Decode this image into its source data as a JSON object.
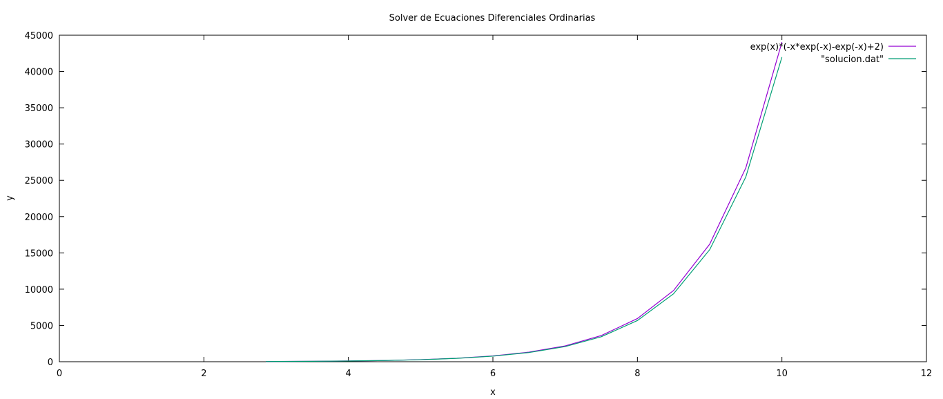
{
  "chart_data": {
    "type": "line",
    "title": "Solver de Ecuaciones Diferenciales Ordinarias",
    "xlabel": "x",
    "ylabel": "y",
    "xlim": [
      0,
      12
    ],
    "ylim": [
      0,
      45000
    ],
    "xticks": [
      0,
      2,
      4,
      6,
      8,
      10,
      12
    ],
    "yticks": [
      0,
      5000,
      10000,
      15000,
      20000,
      25000,
      30000,
      35000,
      40000,
      45000
    ],
    "grid": false,
    "legend_position": "top-right",
    "series": [
      {
        "name": "exp(x)*(-x*exp(-x)-exp(-x)+2)",
        "color": "#9400d3",
        "x": [
          2.857,
          3.0,
          3.5,
          4.0,
          4.5,
          5.0,
          5.5,
          6.0,
          6.5,
          7.0,
          7.5,
          8.0,
          8.5,
          9.0,
          9.5,
          10.0
        ],
        "y": [
          31.5,
          36.2,
          62.7,
          104.2,
          169.5,
          290.8,
          480.9,
          799.9,
          1325.7,
          2185.3,
          3607.6,
          5951.0,
          9817.0,
          16196.0,
          26706.0,
          44041.0
        ]
      },
      {
        "name": "\"solucion.dat\"",
        "color": "#009e73",
        "x": [
          2.857,
          3.0,
          3.5,
          4.0,
          4.5,
          5.0,
          5.5,
          6.0,
          6.5,
          7.0,
          7.5,
          8.0,
          8.5,
          9.0,
          9.5,
          10.0
        ],
        "y": [
          31.5,
          36.0,
          61.5,
          101.5,
          164.0,
          279.0,
          460.0,
          765.0,
          1266.0,
          2085.0,
          3440.0,
          5675.0,
          9360.0,
          15440.0,
          25455.0,
          41980.0
        ]
      }
    ]
  }
}
